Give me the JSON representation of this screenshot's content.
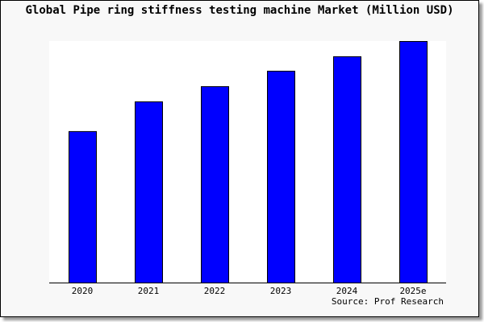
{
  "chart_data": {
    "type": "bar",
    "title": "Global Pipe ring stiffness testing machine Market (Million USD)",
    "categories": [
      "2020",
      "2021",
      "2022",
      "2023",
      "2024",
      "2025e"
    ],
    "values": [
      62.7,
      75.0,
      81.3,
      87.7,
      93.7,
      100.0
    ],
    "value_note_hidden": false,
    "xlabel": "",
    "ylabel": "",
    "ylim": [
      0,
      100
    ],
    "grid": false,
    "source": "Source: Prof Research",
    "colors": {
      "bar": "#0000ff",
      "bar_outline": "#000000",
      "plot_bg": "#ffffff",
      "page_bg": "#f8f8f8"
    }
  }
}
